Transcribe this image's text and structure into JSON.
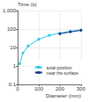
{
  "chart_data": {
    "type": "line",
    "xlabel": "Diameter (mm)",
    "ylabel": "Time (s)",
    "xlim": [
      0,
      300
    ],
    "xticks": [
      0,
      100,
      200,
      300
    ],
    "ylim": [
      0.1,
      1000
    ],
    "yticks": [
      0.1,
      1,
      10,
      100,
      1000
    ],
    "log": "y",
    "grid": true,
    "legend": "lower right",
    "series": [
      {
        "name": "axial position",
        "color": "#1ec8e8",
        "marker": "circle",
        "line_style": "solid",
        "x": [
          10,
          25,
          50,
          100,
          150,
          200,
          250,
          300
        ],
        "values": [
          1.3,
          5,
          12,
          28,
          45,
          60,
          75,
          90
        ]
      },
      {
        "name": "near the surface",
        "color": "#1a2a8a",
        "marker": "circle",
        "line_style": "solid",
        "x": [
          200,
          250,
          300
        ],
        "values": [
          55,
          70,
          85
        ]
      }
    ]
  }
}
